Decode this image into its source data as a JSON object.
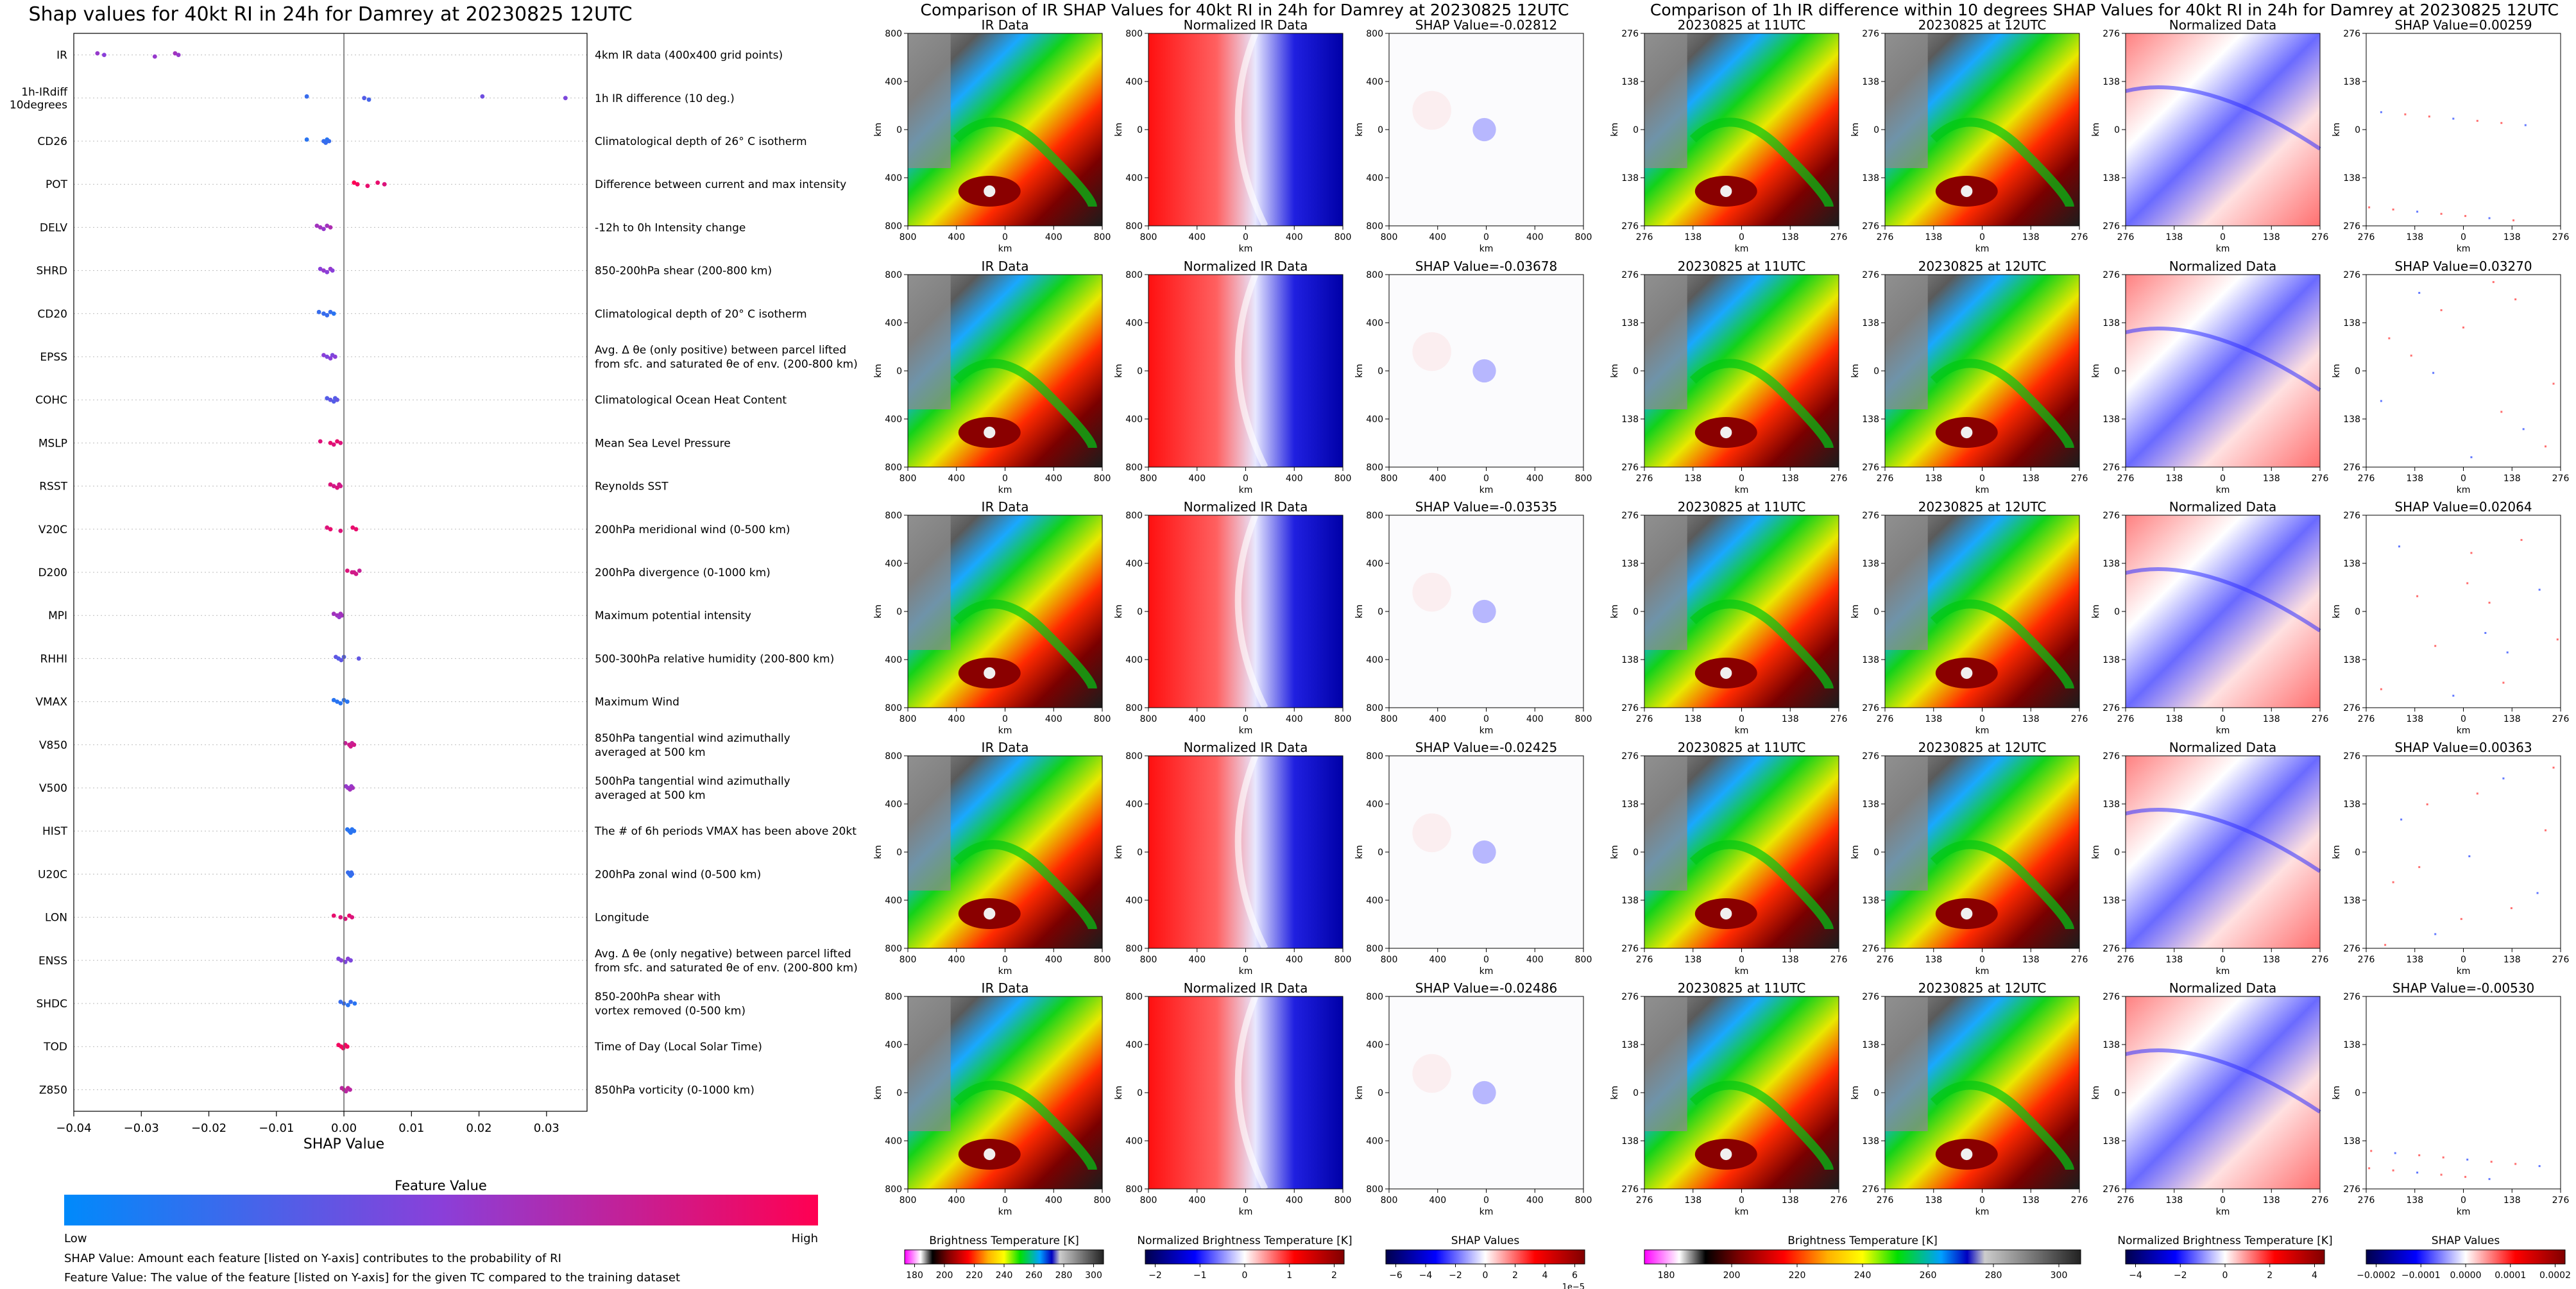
{
  "left_panel": {
    "title": "Shap values for 40kt RI in 24h for Damrey at 20230825 12UTC",
    "xlabel": "SHAP Value",
    "x_ticks": [
      "−0.04",
      "−0.03",
      "−0.02",
      "−0.01",
      "0.00",
      "0.01",
      "0.02",
      "0.03"
    ],
    "colorbar_title": "Feature Value",
    "colorbar_low": "Low",
    "colorbar_high": "High",
    "footnote_1": "SHAP Value: Amount each feature [listed on Y-axis] contributes to the probability of RI",
    "footnote_2": "Feature Value: The value of the feature [listed on Y-axis] for the given TC compared to the training dataset"
  },
  "chart_data": [
    {
      "type": "scatter",
      "title": "Shap values for 40kt RI in 24h for Damrey at 20230825 12UTC",
      "xlabel": "SHAP Value",
      "ylabel": "",
      "xlim": [
        -0.04,
        0.036
      ],
      "grid": "horizontal dotted",
      "color_scale": [
        "#008afb",
        "#8a3fd9",
        "#ff0052"
      ],
      "features": [
        {
          "name": "IR",
          "desc": "4km IR data (400x400 grid points)",
          "points": [
            [
              -0.0365,
              0.55
            ],
            [
              -0.0355,
              0.5
            ],
            [
              -0.028,
              0.55
            ],
            [
              -0.025,
              0.6
            ],
            [
              -0.0245,
              0.55
            ]
          ]
        },
        {
          "name": "1h-IRdiff\n10degrees",
          "desc": "1h IR difference (10 deg.)",
          "points": [
            [
              -0.0055,
              0.2
            ],
            [
              0.003,
              0.3
            ],
            [
              0.0037,
              0.25
            ],
            [
              0.0205,
              0.4
            ],
            [
              0.0328,
              0.45
            ]
          ]
        },
        {
          "name": "CD26",
          "desc": "Climatological depth of 26° C isotherm",
          "points": [
            [
              -0.0055,
              0.15
            ],
            [
              -0.003,
              0.2
            ],
            [
              -0.0027,
              0.2
            ],
            [
              -0.0025,
              0.15
            ],
            [
              -0.0022,
              0.2
            ]
          ]
        },
        {
          "name": "POT",
          "desc": "Difference between current and max intensity",
          "points": [
            [
              0.0015,
              1.0
            ],
            [
              0.002,
              0.95
            ],
            [
              0.0035,
              0.9
            ],
            [
              0.005,
              0.9
            ],
            [
              0.006,
              0.85
            ]
          ]
        },
        {
          "name": "DELV",
          "desc": "-12h to 0h Intensity change",
          "points": [
            [
              -0.004,
              0.6
            ],
            [
              -0.0035,
              0.6
            ],
            [
              -0.003,
              0.55
            ],
            [
              -0.0025,
              0.6
            ],
            [
              -0.002,
              0.65
            ]
          ]
        },
        {
          "name": "SHRD",
          "desc": "850-200hPa shear (200-800 km)",
          "points": [
            [
              -0.0035,
              0.5
            ],
            [
              -0.003,
              0.55
            ],
            [
              -0.0025,
              0.5
            ],
            [
              -0.002,
              0.55
            ],
            [
              -0.0017,
              0.5
            ]
          ]
        },
        {
          "name": "CD20",
          "desc": "Climatological depth of 20° C isotherm",
          "points": [
            [
              -0.0037,
              0.2
            ],
            [
              -0.003,
              0.2
            ],
            [
              -0.0025,
              0.2
            ],
            [
              -0.002,
              0.2
            ],
            [
              -0.0015,
              0.15
            ]
          ]
        },
        {
          "name": "EPSS",
          "desc": "Avg. Δ θe (only positive) between parcel lifted\nfrom sfc. and saturated θe of env. (200-800 km)",
          "points": [
            [
              -0.003,
              0.5
            ],
            [
              -0.0025,
              0.45
            ],
            [
              -0.002,
              0.5
            ],
            [
              -0.0017,
              0.45
            ],
            [
              -0.0013,
              0.5
            ]
          ]
        },
        {
          "name": "COHC",
          "desc": "Climatological Ocean Heat Content",
          "points": [
            [
              -0.0025,
              0.3
            ],
            [
              -0.002,
              0.35
            ],
            [
              -0.0015,
              0.3
            ],
            [
              -0.0013,
              0.3
            ],
            [
              -0.001,
              0.35
            ]
          ]
        },
        {
          "name": "MSLP",
          "desc": "Mean Sea Level Pressure",
          "points": [
            [
              -0.0035,
              0.85
            ],
            [
              -0.002,
              0.9
            ],
            [
              -0.0015,
              0.85
            ],
            [
              -0.001,
              0.9
            ],
            [
              -0.0005,
              0.85
            ]
          ]
        },
        {
          "name": "RSST",
          "desc": "Reynolds SST",
          "points": [
            [
              -0.002,
              0.85
            ],
            [
              -0.0015,
              0.8
            ],
            [
              -0.001,
              0.85
            ],
            [
              -0.0007,
              0.8
            ],
            [
              -0.0005,
              0.8
            ]
          ]
        },
        {
          "name": "V20C",
          "desc": "200hPa meridional wind (0-500 km)",
          "points": [
            [
              -0.0025,
              0.85
            ],
            [
              -0.002,
              0.9
            ],
            [
              -0.0005,
              0.85
            ],
            [
              0.0013,
              0.9
            ],
            [
              0.0018,
              0.9
            ]
          ]
        },
        {
          "name": "D200",
          "desc": "200hPa divergence (0-1000 km)",
          "points": [
            [
              0.0005,
              0.85
            ],
            [
              0.0012,
              0.8
            ],
            [
              0.0018,
              0.8
            ],
            [
              0.0023,
              0.75
            ],
            [
              0.0015,
              0.8
            ]
          ]
        },
        {
          "name": "MPI",
          "desc": "Maximum potential intensity",
          "points": [
            [
              -0.0015,
              0.6
            ],
            [
              -0.001,
              0.6
            ],
            [
              -0.0007,
              0.55
            ],
            [
              -0.0005,
              0.6
            ],
            [
              -0.0003,
              0.6
            ]
          ]
        },
        {
          "name": "RHHI",
          "desc": "500-300hPa relative humidity (200-800 km)",
          "points": [
            [
              -0.0012,
              0.35
            ],
            [
              -0.0008,
              0.3
            ],
            [
              -0.0004,
              0.35
            ],
            [
              0.0,
              0.3
            ],
            [
              0.0022,
              0.35
            ]
          ]
        },
        {
          "name": "VMAX",
          "desc": "Maximum Wind",
          "points": [
            [
              -0.0015,
              0.15
            ],
            [
              -0.001,
              0.15
            ],
            [
              -0.0005,
              0.15
            ],
            [
              0.0,
              0.15
            ],
            [
              0.0005,
              0.15
            ]
          ]
        },
        {
          "name": "V850",
          "desc": "850hPa tangential wind azimuthally\naveraged at 500 km",
          "points": [
            [
              0.0002,
              0.75
            ],
            [
              0.0008,
              0.8
            ],
            [
              0.001,
              0.8
            ],
            [
              0.0012,
              0.75
            ],
            [
              0.0015,
              0.8
            ]
          ]
        },
        {
          "name": "V500",
          "desc": "500hPa tangential wind azimuthally\naveraged at 500 km",
          "points": [
            [
              0.0003,
              0.55
            ],
            [
              0.0006,
              0.55
            ],
            [
              0.0009,
              0.6
            ],
            [
              0.0011,
              0.55
            ],
            [
              0.0013,
              0.6
            ]
          ]
        },
        {
          "name": "HIST",
          "desc": "The # of 6h periods VMAX has been above 20kt",
          "points": [
            [
              0.0005,
              0.15
            ],
            [
              0.0008,
              0.15
            ],
            [
              0.001,
              0.15
            ],
            [
              0.0012,
              0.15
            ],
            [
              0.0015,
              0.15
            ]
          ]
        },
        {
          "name": "U20C",
          "desc": "200hPa zonal wind (0-500 km)",
          "points": [
            [
              0.0006,
              0.2
            ],
            [
              0.0008,
              0.2
            ],
            [
              0.001,
              0.15
            ],
            [
              0.0011,
              0.2
            ],
            [
              0.0012,
              0.2
            ]
          ]
        },
        {
          "name": "LON",
          "desc": "Longitude",
          "points": [
            [
              -0.0015,
              0.9
            ],
            [
              -0.0005,
              0.85
            ],
            [
              0.0002,
              0.85
            ],
            [
              0.0008,
              0.9
            ],
            [
              0.0012,
              0.85
            ]
          ]
        },
        {
          "name": "ENSS",
          "desc": "Avg. Δ θe (only negative) between parcel lifted\nfrom sfc. and saturated θe of env. (200-800 km)",
          "points": [
            [
              -0.0008,
              0.45
            ],
            [
              -0.0004,
              0.5
            ],
            [
              0.0002,
              0.45
            ],
            [
              0.0006,
              0.5
            ],
            [
              0.001,
              0.45
            ]
          ]
        },
        {
          "name": "SHDC",
          "desc": "850-200hPa shear with\nvortex removed (0-500 km)",
          "points": [
            [
              -0.0005,
              0.2
            ],
            [
              0.0,
              0.2
            ],
            [
              0.0006,
              0.15
            ],
            [
              0.001,
              0.2
            ],
            [
              0.0016,
              0.15
            ]
          ]
        },
        {
          "name": "TOD",
          "desc": "Time of Day (Local Solar Time)",
          "points": [
            [
              -0.0008,
              0.95
            ],
            [
              -0.0004,
              0.95
            ],
            [
              -0.0001,
              0.95
            ],
            [
              0.0002,
              0.95
            ],
            [
              0.0005,
              0.95
            ]
          ]
        },
        {
          "name": "Z850",
          "desc": "850hPa vorticity (0-1000 km)",
          "points": [
            [
              -0.0003,
              0.7
            ],
            [
              0.0,
              0.75
            ],
            [
              0.0003,
              0.7
            ],
            [
              0.0006,
              0.75
            ],
            [
              0.0009,
              0.7
            ]
          ]
        }
      ]
    },
    {
      "type": "heatmap",
      "title": "Comparison of IR SHAP Values for 40kt RI in 24h for Damrey at 20230825 12UTC",
      "columns": [
        "IR Data",
        "Normalized IR Data",
        "SHAP Value"
      ],
      "shap_values": [
        "SHAP Value=-0.02812",
        "SHAP Value=-0.03678",
        "SHAP Value=-0.03535",
        "SHAP Value=-0.02425",
        "SHAP Value=-0.02486"
      ],
      "xlabel": "km",
      "ylabel": "km",
      "x_ticks": [
        "800",
        "400",
        "0",
        "400",
        "800"
      ],
      "y_ticks": [
        "800",
        "400",
        "0",
        "400",
        "800"
      ],
      "colorbars": [
        {
          "label": "Brightness Temperature [K]",
          "ticks": [
            "180",
            "200",
            "220",
            "240",
            "260",
            "280",
            "300"
          ]
        },
        {
          "label": "Normalized Brightness Temperature [K]",
          "ticks": [
            "−2",
            "−1",
            "0",
            "1",
            "2"
          ]
        },
        {
          "label": "SHAP Values",
          "ticks": [
            "−6",
            "−4",
            "−2",
            "0",
            "2",
            "4",
            "6"
          ],
          "scale": "1e−5"
        }
      ]
    },
    {
      "type": "heatmap",
      "title": "Comparison of 1h IR difference within 10 degrees SHAP Values for 40kt RI in 24h for Damrey at 20230825 12UTC",
      "columns": [
        "20230825 at 11UTC",
        "20230825 at 12UTC",
        "Normalized Data",
        "SHAP Value"
      ],
      "shap_values": [
        "SHAP Value=0.00259",
        "SHAP Value=0.03270",
        "SHAP Value=0.02064",
        "SHAP Value=0.00363",
        "SHAP Value=-0.00530"
      ],
      "xlabel": "km",
      "ylabel": "km",
      "x_ticks": [
        "276",
        "138",
        "0",
        "138",
        "276"
      ],
      "y_ticks": [
        "276",
        "138",
        "0",
        "138",
        "276"
      ],
      "colorbars": [
        {
          "label": "Brightness Temperature [K]",
          "ticks": [
            "180",
            "200",
            "220",
            "240",
            "260",
            "280",
            "300"
          ]
        },
        {
          "label": "Normalized Brightness Temperature [K]",
          "ticks": [
            "−4",
            "−2",
            "0",
            "2",
            "4"
          ]
        },
        {
          "label": "SHAP Values",
          "ticks": [
            "−0.0002",
            "−0.0001",
            "0.0000",
            "0.0001",
            "0.0002"
          ]
        }
      ]
    }
  ]
}
